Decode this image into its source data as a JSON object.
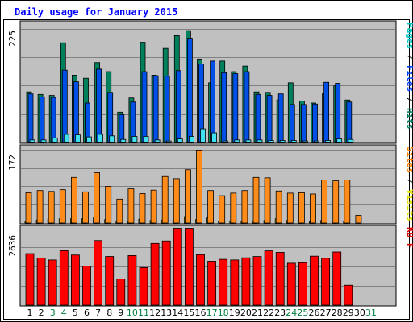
{
  "chart_data": {
    "title": "Daily usage for January 2015",
    "type": "bar",
    "days": [
      1,
      2,
      3,
      4,
      5,
      6,
      7,
      8,
      9,
      10,
      11,
      12,
      13,
      14,
      15,
      16,
      17,
      18,
      19,
      20,
      21,
      22,
      23,
      24,
      25,
      26,
      27,
      28,
      29,
      30,
      31
    ],
    "weekend_days": [
      3,
      4,
      10,
      11,
      17,
      18,
      24,
      25,
      31
    ],
    "panels": [
      {
        "id": "top",
        "ymax": 225,
        "ymax_label": "225",
        "right_label_parts": [
          {
            "text": "Pages",
            "color": "#00c8c8"
          },
          {
            "text": " / ",
            "color": "#000000"
          },
          {
            "text": "Files",
            "color": "#0040ff"
          },
          {
            "text": " / ",
            "color": "#000000"
          },
          {
            "text": "Hits",
            "color": "#008060"
          }
        ],
        "series": [
          {
            "name": "Hits",
            "color": "#00805c",
            "values": [
              100,
              95,
              93,
              197,
              133,
              127,
              158,
              140,
              60,
              88,
              198,
              133,
              186,
              211,
              221,
              165,
              118,
              161,
              140,
              151,
              100,
              99,
              84,
              118,
              82,
              78,
              98,
              112,
              84,
              0,
              0
            ]
          },
          {
            "name": "Files",
            "color": "#0050e8",
            "values": [
              96,
              90,
              89,
              143,
              120,
              78,
              145,
              99,
              55,
              80,
              140,
              132,
              131,
              142,
              206,
              155,
              161,
              138,
              136,
              140,
              95,
              93,
              96,
              75,
              75,
              76,
              119,
              117,
              80,
              0,
              0
            ]
          },
          {
            "name": "Pages",
            "color": "#40e0f0",
            "values": [
              5,
              5,
              9,
              16,
              15,
              11,
              16,
              13,
              6,
              12,
              12,
              5,
              3,
              7,
              12,
              27,
              19,
              3,
              5,
              5,
              5,
              4,
              4,
              4,
              3,
              3,
              4,
              7,
              6,
              0,
              0
            ]
          }
        ]
      },
      {
        "id": "mid",
        "ymax": 172,
        "ymax_label": "172",
        "right_label_parts": [
          {
            "text": "Sites",
            "color": "#ff8000"
          },
          {
            "text": " / ",
            "color": "#000000"
          },
          {
            "text": "Visits",
            "color": "#e0e000"
          }
        ],
        "series": [
          {
            "name": "Visits",
            "color": "#ffff00",
            "values": [
              4,
              7,
              9,
              10,
              10,
              10,
              12,
              8,
              5,
              5,
              9,
              6,
              7,
              8,
              15,
              8,
              12,
              4,
              5,
              5,
              5,
              6,
              10,
              6,
              4,
              3,
              6,
              5,
              5,
              0,
              0
            ]
          },
          {
            "name": "Sites",
            "color": "#ff8c1a",
            "values": [
              71,
              76,
              74,
              78,
              107,
              73,
              118,
              86,
              56,
              80,
              69,
              77,
              109,
              104,
              125,
              171,
              76,
              64,
              70,
              76,
              107,
              106,
              75,
              70,
              71,
              68,
              101,
              99,
              101,
              18,
              0
            ]
          }
        ]
      },
      {
        "id": "bottom",
        "ymax": 2636,
        "ymax_label": "2636",
        "right_label_parts": [
          {
            "text": "KB F",
            "color": "#e00000"
          }
        ],
        "series": [
          {
            "name": "KB F",
            "color": "#ff0000",
            "values": [
              1765,
              1618,
              1548,
              1865,
              1719,
              1337,
              2215,
              1669,
              898,
              1700,
              1288,
              2117,
              2202,
              2636,
              2636,
              1731,
              1506,
              1570,
              1549,
              1623,
              1667,
              1861,
              1810,
              1438,
              1454,
              1679,
              1606,
              1822,
              684,
              0,
              0
            ]
          }
        ]
      }
    ],
    "colors": {
      "background": "#c0c0c0",
      "title": "#0000ff",
      "weekday_label": "#000000",
      "weekend_label": "#008040",
      "gridline": "#808080"
    }
  }
}
